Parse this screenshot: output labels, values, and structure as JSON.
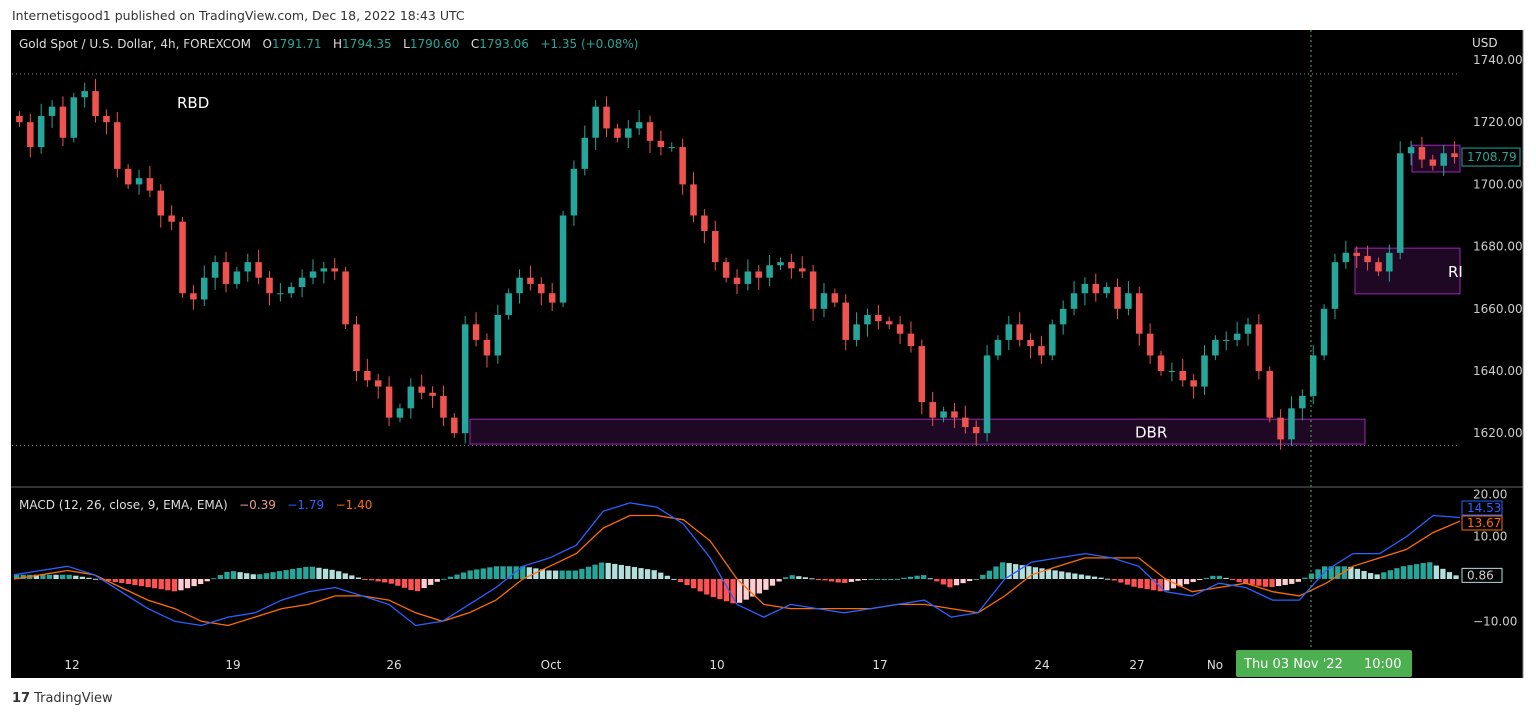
{
  "publish_line": "Internetisgood1 published on TradingView.com, Dec 18, 2022 18:43 UTC",
  "legend": {
    "symbol": "Gold Spot / U.S. Dollar, 4h, FOREXCOM",
    "o_label": "O",
    "o": "1791.71",
    "h_label": "H",
    "h": "1794.35",
    "l_label": "L",
    "l": "1790.60",
    "c_label": "C",
    "c": "1793.06",
    "change": "+1.35 (+0.08%)"
  },
  "macd_legend": {
    "name": "MACD (12, 26, close, 9, EMA, EMA)",
    "hist": "−0.39",
    "macd": "−1.79",
    "signal": "−1.40"
  },
  "branding": {
    "logo_text": "TradingView"
  },
  "colors": {
    "up": "#26a69a",
    "down": "#ef5350",
    "macd": "#2962ff",
    "signal": "#ff6d00",
    "zone": "#9c27b0",
    "crosshair": "#4caf50"
  },
  "chart_data": [
    {
      "type": "candlestick",
      "currency_label": "USD",
      "ylim": [
        1606,
        1746
      ],
      "y_ticks": [
        "1740.00",
        "1720.00",
        "1700.00",
        "1680.00",
        "1660.00",
        "1640.00",
        "1620.00"
      ],
      "x_ticks": [
        "12",
        "19",
        "26",
        "Oct",
        "10",
        "17",
        "24",
        "27",
        "No"
      ],
      "last_price": "1708.79",
      "closes": [
        1720,
        1712,
        1722,
        1725,
        1715,
        1728,
        1730,
        1722,
        1720,
        1705,
        1700,
        1702,
        1698,
        1690,
        1688,
        1665,
        1663,
        1670,
        1675,
        1668,
        1672,
        1675,
        1670,
        1665,
        1665,
        1667,
        1670,
        1672,
        1673,
        1672,
        1655,
        1640,
        1637,
        1635,
        1625,
        1628,
        1635,
        1633,
        1632,
        1625,
        1620,
        1655,
        1650,
        1645,
        1658,
        1665,
        1670,
        1668,
        1665,
        1662,
        1690,
        1705,
        1715,
        1725,
        1718,
        1715,
        1718,
        1720,
        1714,
        1712,
        1712,
        1700,
        1690,
        1685,
        1675,
        1670,
        1668,
        1672,
        1670,
        1674,
        1675,
        1673,
        1672,
        1660,
        1665,
        1662,
        1650,
        1655,
        1658,
        1656,
        1655,
        1652,
        1648,
        1630,
        1625,
        1627,
        1625,
        1622,
        1620,
        1645,
        1650,
        1655,
        1650,
        1648,
        1645,
        1655,
        1660,
        1665,
        1668,
        1665,
        1667,
        1660,
        1665,
        1652,
        1645,
        1640,
        1640,
        1637,
        1635,
        1645,
        1650,
        1650,
        1652,
        1655,
        1640,
        1625,
        1618,
        1628,
        1632,
        1645,
        1660,
        1675,
        1678,
        1677,
        1675,
        1672,
        1678,
        1710,
        1712,
        1708,
        1706,
        1710,
        1708.79
      ],
      "zones": [
        {
          "label": "RBD",
          "top": 1730,
          "bottom": 1730
        },
        {
          "label": "DBR",
          "top": 1624.5,
          "bottom": 1616.5
        },
        {
          "label": "RI",
          "top": 1679.5,
          "bottom": 1664.8
        },
        {
          "label": "",
          "top": 1712.6,
          "bottom": 1704
        }
      ],
      "dotted_levels": [
        1735.5,
        1616
      ]
    },
    {
      "type": "macd",
      "ylim": [
        -16,
        22
      ],
      "y_ticks": [
        "20.00",
        "10.00",
        "−10.00"
      ],
      "macd_last": "14.53",
      "signal_last": "13.67",
      "hist_last": "0.86",
      "macd": [
        1,
        2,
        3,
        1,
        -3,
        -7,
        -10,
        -11,
        -9,
        -8,
        -5,
        -3,
        -2,
        -4,
        -6,
        -11,
        -10,
        -6,
        -2,
        3,
        5,
        8,
        16,
        18,
        17,
        13,
        5,
        -6,
        -9,
        -6,
        -7,
        -8,
        -7,
        -6,
        -5,
        -9,
        -8,
        0,
        4,
        5,
        6,
        5,
        3,
        -3,
        -4,
        -1,
        -2,
        -5,
        -5,
        2,
        6,
        6,
        10,
        15,
        14.53
      ],
      "signal": [
        0,
        1,
        2,
        1,
        -2,
        -5,
        -7,
        -10,
        -11,
        -9,
        -7,
        -6,
        -4,
        -4,
        -5,
        -8,
        -10,
        -8,
        -5,
        0,
        3,
        6,
        12,
        15,
        15,
        14,
        9,
        0,
        -6,
        -7,
        -7,
        -7,
        -7,
        -6,
        -6,
        -7,
        -8,
        -4,
        1,
        3,
        5,
        5,
        5,
        0,
        -3,
        -2,
        -1,
        -3,
        -4,
        -1,
        3,
        5,
        7,
        11,
        13.67
      ]
    }
  ],
  "crosshair": {
    "date_label": "Thu 03 Nov '22",
    "time_label": "10:00"
  }
}
